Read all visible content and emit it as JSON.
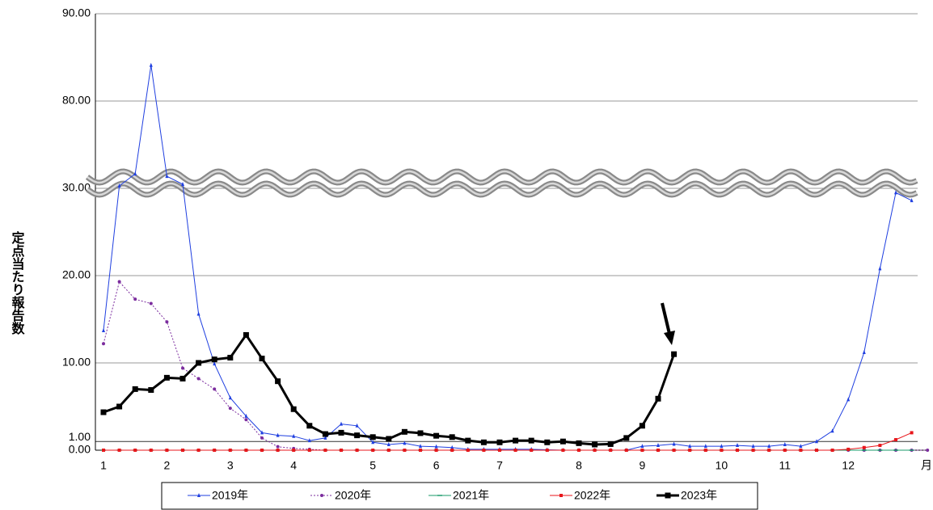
{
  "chart_data": {
    "type": "line",
    "y_label": "定点当たり報告数",
    "x_label": "月",
    "categories": [
      "1",
      null,
      null,
      null,
      "2",
      null,
      null,
      null,
      "3",
      null,
      null,
      null,
      "4",
      null,
      null,
      null,
      null,
      "5",
      null,
      null,
      null,
      "6",
      null,
      null,
      null,
      "7",
      null,
      null,
      null,
      null,
      "8",
      null,
      null,
      null,
      "9",
      null,
      null,
      null,
      null,
      "10",
      null,
      null,
      null,
      "11",
      null,
      null,
      null,
      "12",
      null,
      null,
      null,
      null,
      null
    ],
    "ylim": [
      0,
      90
    ],
    "y_break": [
      30,
      80
    ],
    "yticks": [
      {
        "value": 0,
        "label": "0.00"
      },
      {
        "value": 1,
        "label": "1.00"
      },
      {
        "value": 10,
        "label": "10.00"
      },
      {
        "value": 20,
        "label": "20.00"
      },
      {
        "value": 30,
        "label": "30.00"
      },
      {
        "value": 80,
        "label": "80.00"
      },
      {
        "value": 90,
        "label": "90.00"
      }
    ],
    "grid": true,
    "legend": "bottom",
    "series": [
      {
        "name": "2019年",
        "color": "#1f3fe0",
        "marker": "triangle",
        "dash": "solid",
        "width": 1,
        "values": [
          13.7,
          31.4,
          38.3,
          84.1,
          36.9,
          32.3,
          15.6,
          9.9,
          6.0,
          3.9,
          2.0,
          1.7,
          1.6,
          1.1,
          1.4,
          3.0,
          2.8,
          0.9,
          0.65,
          0.8,
          0.45,
          0.4,
          0.3,
          0.1,
          0.1,
          0.1,
          0.1,
          0.1,
          0.05,
          0,
          0,
          0,
          0,
          0,
          0.45,
          0.55,
          0.7,
          0.45,
          0.45,
          0.45,
          0.55,
          0.45,
          0.45,
          0.65,
          0.45,
          1.0,
          2.2,
          5.8,
          11.2,
          20.8,
          29.5,
          28.6,
          null
        ]
      },
      {
        "name": "2020年",
        "color": "#7b2c9e",
        "marker": "circle",
        "dash": "dotted",
        "width": 1,
        "values": [
          12.2,
          19.3,
          17.3,
          16.8,
          14.7,
          9.4,
          8.2,
          7.0,
          4.8,
          3.5,
          1.4,
          0.4,
          0.2,
          0.1,
          0,
          0,
          0,
          0,
          0,
          0,
          0,
          0,
          0,
          0,
          0,
          0,
          0,
          0,
          0,
          0,
          0,
          0,
          0,
          0,
          0,
          0,
          0,
          0,
          0,
          0,
          0,
          0,
          0,
          0,
          0,
          0,
          0,
          0,
          0,
          0,
          0,
          0,
          0
        ]
      },
      {
        "name": "2021年",
        "color": "#1a9a6a",
        "marker": "dash",
        "dash": "solid",
        "width": 1,
        "values": [
          0,
          0,
          0,
          0,
          0,
          0,
          0,
          0,
          0,
          0,
          0,
          0,
          0,
          0,
          0,
          0,
          0,
          0,
          0,
          0,
          0,
          0,
          0,
          0,
          0,
          0,
          0,
          0,
          0,
          0,
          0,
          0,
          0,
          0,
          0,
          0,
          0,
          0,
          0,
          0,
          0,
          0,
          0,
          0,
          0,
          0,
          0,
          0,
          0,
          0,
          0,
          0,
          null
        ]
      },
      {
        "name": "2022年",
        "color": "#e8161b",
        "marker": "square",
        "dash": "solid",
        "width": 1,
        "values": [
          0,
          0,
          0,
          0,
          0,
          0,
          0,
          0,
          0,
          0,
          0,
          0,
          0,
          0,
          0,
          0,
          0,
          0,
          0,
          0,
          0,
          0,
          0,
          0,
          0,
          0,
          0,
          0,
          0,
          0,
          0,
          0,
          0,
          0,
          0,
          0,
          0,
          0,
          0,
          0,
          0,
          0,
          0,
          0,
          0,
          0,
          0,
          0.1,
          0.3,
          0.55,
          1.2,
          2.0,
          null
        ]
      },
      {
        "name": "2023年",
        "color": "#000000",
        "marker": "square",
        "dash": "solid",
        "width": 3,
        "values": [
          4.35,
          5.0,
          7.0,
          6.9,
          8.3,
          8.2,
          10.0,
          10.4,
          10.6,
          13.2,
          10.5,
          7.9,
          4.7,
          2.8,
          1.85,
          2.0,
          1.7,
          1.5,
          1.3,
          2.1,
          1.95,
          1.65,
          1.5,
          1.1,
          0.9,
          0.9,
          1.1,
          1.1,
          0.9,
          1.0,
          0.8,
          0.65,
          0.7,
          1.4,
          2.8,
          5.9,
          11.0,
          null,
          null,
          null,
          null,
          null,
          null,
          null,
          null,
          null,
          null,
          null,
          null,
          null,
          null,
          null,
          null
        ]
      }
    ]
  }
}
